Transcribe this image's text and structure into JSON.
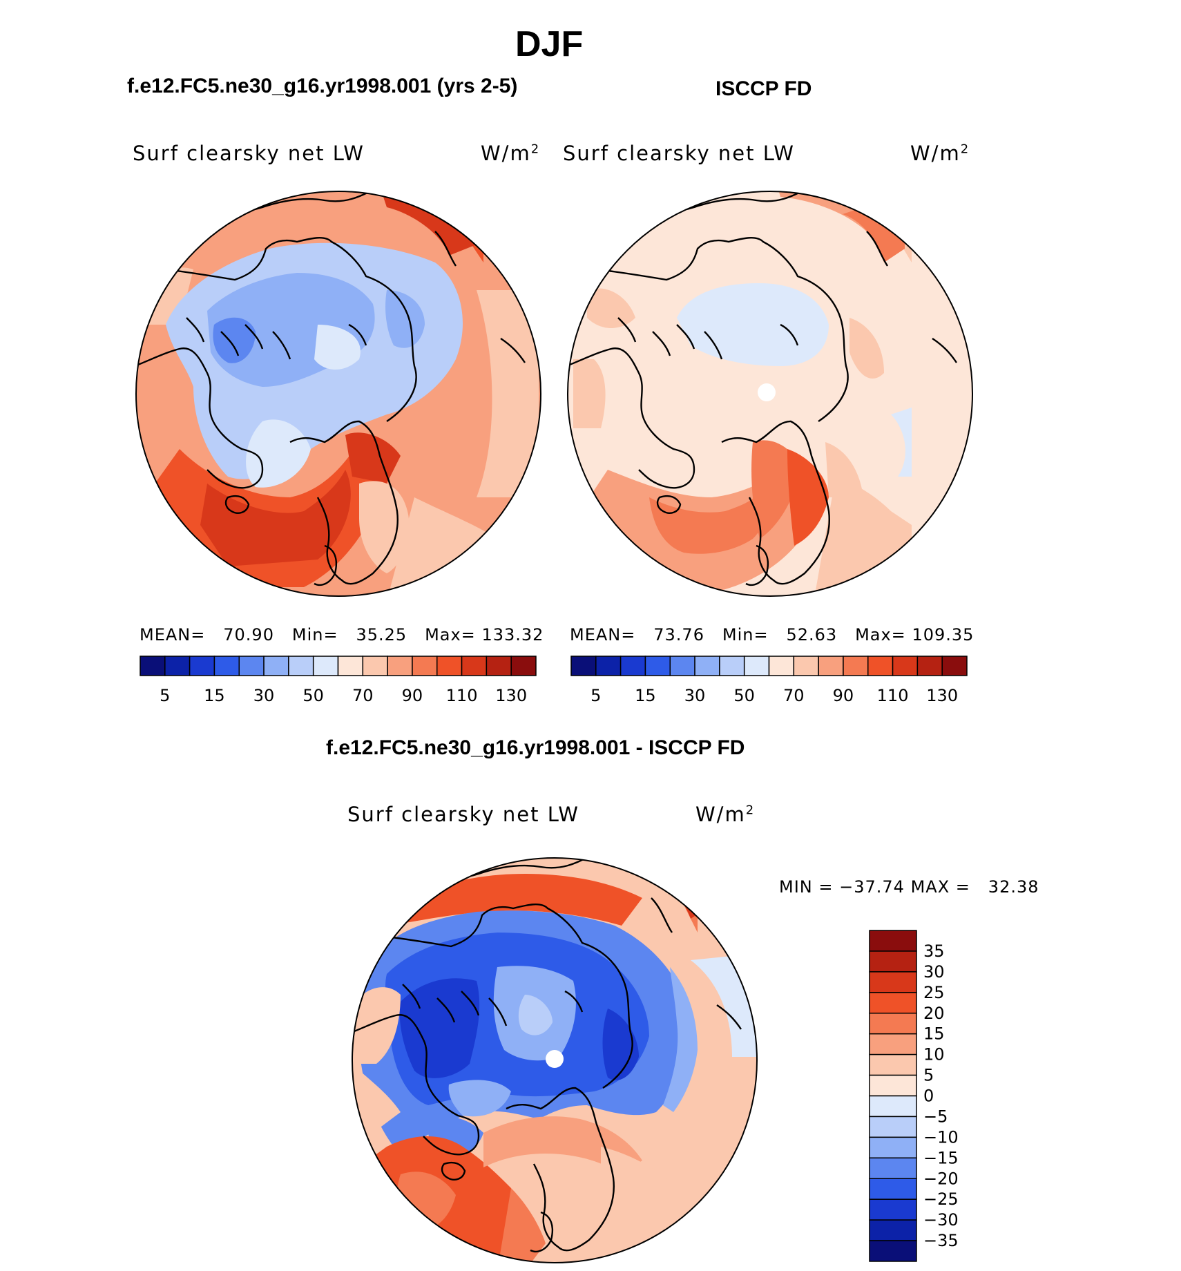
{
  "figure_title": "DJF",
  "panels": [
    {
      "title": "f.e12.FC5.ne30_g16.yr1998.001 (yrs 2-5)",
      "variable": "Surf clearsky net LW",
      "units_base": "W/m",
      "units_exp": "2",
      "stats": {
        "mean_label": "MEAN=",
        "mean": "70.90",
        "min_label": "Min=",
        "min": "35.25",
        "max_label": "Max=",
        "max": "133.32"
      }
    },
    {
      "title": "ISCCP FD",
      "variable": "Surf clearsky net LW",
      "units_base": "W/m",
      "units_exp": "2",
      "stats": {
        "mean_label": "MEAN=",
        "mean": "73.76",
        "min_label": "Min=",
        "min": "52.63",
        "max_label": "Max=",
        "max": "109.35"
      }
    },
    {
      "title": "f.e12.FC5.ne30_g16.yr1998.001 - ISCCP FD",
      "variable": "Surf clearsky net LW",
      "units_base": "W/m",
      "units_exp": "2",
      "stats": {
        "min_label": "MIN =",
        "min": "−37.74",
        "max_label": "MAX =",
        "max": "32.38"
      }
    }
  ],
  "colorbar_abs": {
    "colors": [
      "#0a0f78",
      "#0c22a8",
      "#1a3ad0",
      "#2e5be8",
      "#5c86f0",
      "#8fb0f6",
      "#b9cef9",
      "#dde9fb",
      "#fde6d8",
      "#fbc8ae",
      "#f8a07e",
      "#f47a52",
      "#ef5228",
      "#d8381a",
      "#b52212",
      "#8a0d0d"
    ],
    "labels": [
      "5",
      "15",
      "30",
      "50",
      "70",
      "90",
      "110",
      "130"
    ]
  },
  "colorbar_diff": {
    "colors": [
      "#8a0d0d",
      "#b52212",
      "#d8381a",
      "#ef5228",
      "#f47a52",
      "#f8a07e",
      "#fbc8ae",
      "#fde6d8",
      "#dde9fb",
      "#b9cef9",
      "#8fb0f6",
      "#5c86f0",
      "#2e5be8",
      "#1a3ad0",
      "#0c22a8",
      "#0a0f78"
    ],
    "labels": [
      "35",
      "30",
      "25",
      "20",
      "15",
      "10",
      "5",
      "0",
      "−5",
      "−10",
      "−15",
      "−20",
      "−25",
      "−30",
      "−35"
    ]
  }
}
